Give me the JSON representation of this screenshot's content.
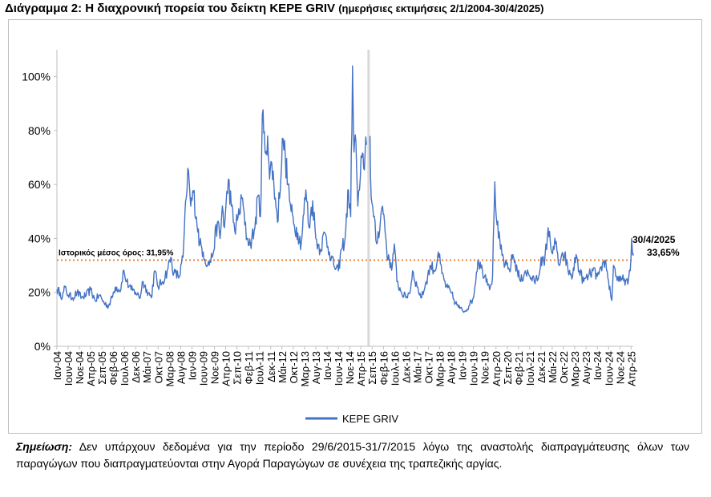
{
  "title": {
    "main": "Διάγραμμα 2: Η διαχρονική πορεία του δείκτη ΚΕΡΕ GRIV",
    "sub": "(ημερήσιες εκτιμήσεις 2/1/2004-30/4/2025)"
  },
  "note": {
    "label": "Σημείωση:",
    "text": "Δεν υπάρχουν δεδομένα για την περίοδο 29/6/2015-31/7/2015 λόγω της αναστολής διαπραγμάτευσης όλων των παραγώγων που διαπραγματεύονται στην Αγορά Παραγώγων σε συνέχεια της τραπεζικής αργίας."
  },
  "colors": {
    "series": "#4472c4",
    "mean_line": "#ed7d31",
    "gap_band": "#d9d9d9",
    "axis": "#bfbfbf"
  },
  "chart_data": {
    "type": "line",
    "ylim": [
      0,
      110
    ],
    "yticks": [
      0,
      20,
      40,
      60,
      80,
      100
    ],
    "ytick_labels": [
      "0%",
      "20%",
      "40%",
      "60%",
      "80%",
      "100%"
    ],
    "xlim": [
      "2004-01-02",
      "2025-04-30"
    ],
    "x_ticks": [
      {
        "date": "2004-01-01",
        "label": "Ιαν-04"
      },
      {
        "date": "2004-06-01",
        "label": "Ιουν-04"
      },
      {
        "date": "2004-11-01",
        "label": "Νοε-04"
      },
      {
        "date": "2005-04-01",
        "label": "Απρ-05"
      },
      {
        "date": "2005-09-01",
        "label": "Σεπ-05"
      },
      {
        "date": "2006-02-01",
        "label": "Φεβ-06"
      },
      {
        "date": "2006-07-01",
        "label": "Ιουλ-06"
      },
      {
        "date": "2006-12-01",
        "label": "Δεκ-06"
      },
      {
        "date": "2007-05-01",
        "label": "Μάι-07"
      },
      {
        "date": "2007-10-01",
        "label": "Οκτ-07"
      },
      {
        "date": "2008-03-01",
        "label": "Μαρ-08"
      },
      {
        "date": "2008-08-01",
        "label": "Αυγ-08"
      },
      {
        "date": "2009-01-01",
        "label": "Ιαν-09"
      },
      {
        "date": "2009-06-01",
        "label": "Ιουν-09"
      },
      {
        "date": "2009-11-01",
        "label": "Νοε-09"
      },
      {
        "date": "2010-04-01",
        "label": "Απρ-10"
      },
      {
        "date": "2010-09-01",
        "label": "Σεπ-10"
      },
      {
        "date": "2011-02-01",
        "label": "Φεβ-11"
      },
      {
        "date": "2011-07-01",
        "label": "Ιουλ-11"
      },
      {
        "date": "2011-12-01",
        "label": "Δεκ-11"
      },
      {
        "date": "2012-05-01",
        "label": "Μάι-12"
      },
      {
        "date": "2012-10-01",
        "label": "Οκτ-12"
      },
      {
        "date": "2013-03-01",
        "label": "Μαρ-13"
      },
      {
        "date": "2013-08-01",
        "label": "Αυγ-13"
      },
      {
        "date": "2014-01-01",
        "label": "Ιαν-14"
      },
      {
        "date": "2014-06-01",
        "label": "Ιουν-14"
      },
      {
        "date": "2014-11-01",
        "label": "Νοε-14"
      },
      {
        "date": "2015-04-01",
        "label": "Απρ-15"
      },
      {
        "date": "2015-09-01",
        "label": "Σεπ-15"
      },
      {
        "date": "2016-02-01",
        "label": "Φεβ-16"
      },
      {
        "date": "2016-07-01",
        "label": "Ιουλ-16"
      },
      {
        "date": "2016-12-01",
        "label": "Δεκ-16"
      },
      {
        "date": "2017-05-01",
        "label": "Μάι-17"
      },
      {
        "date": "2017-10-01",
        "label": "Οκτ-17"
      },
      {
        "date": "2018-03-01",
        "label": "Μαρ-18"
      },
      {
        "date": "2018-08-01",
        "label": "Αυγ-18"
      },
      {
        "date": "2019-01-01",
        "label": "Ιαν-19"
      },
      {
        "date": "2019-06-01",
        "label": "Ιουν-19"
      },
      {
        "date": "2019-11-01",
        "label": "Νοε-19"
      },
      {
        "date": "2020-04-01",
        "label": "Απρ-20"
      },
      {
        "date": "2020-09-01",
        "label": "Σεπ-20"
      },
      {
        "date": "2021-02-01",
        "label": "Φεβ-21"
      },
      {
        "date": "2021-07-01",
        "label": "Ιουλ-21"
      },
      {
        "date": "2021-12-01",
        "label": "Δεκ-21"
      },
      {
        "date": "2022-05-01",
        "label": "Μάι-22"
      },
      {
        "date": "2022-10-01",
        "label": "Οκτ-22"
      },
      {
        "date": "2023-03-01",
        "label": "Μαρ-23"
      },
      {
        "date": "2023-08-01",
        "label": "Αυγ-23"
      },
      {
        "date": "2024-01-01",
        "label": "Ιαν-24"
      },
      {
        "date": "2024-06-01",
        "label": "Ιουν-24"
      },
      {
        "date": "2024-11-01",
        "label": "Νοε-24"
      },
      {
        "date": "2025-04-01",
        "label": "Απρ-25"
      }
    ],
    "series": [
      {
        "name": "ΚΕΡΕ GRIV",
        "points": [
          [
            "2004-01-02",
            21
          ],
          [
            "2004-02-15",
            20
          ],
          [
            "2004-03-15",
            18
          ],
          [
            "2004-04-20",
            22
          ],
          [
            "2004-06-01",
            19
          ],
          [
            "2004-08-01",
            18
          ],
          [
            "2004-10-01",
            20
          ],
          [
            "2004-12-01",
            18
          ],
          [
            "2005-02-01",
            19
          ],
          [
            "2005-04-01",
            21
          ],
          [
            "2005-06-01",
            17
          ],
          [
            "2005-08-01",
            19
          ],
          [
            "2005-10-01",
            16
          ],
          [
            "2005-12-01",
            15
          ],
          [
            "2006-01-15",
            18
          ],
          [
            "2006-03-01",
            22
          ],
          [
            "2006-05-15",
            21
          ],
          [
            "2006-06-15",
            28
          ],
          [
            "2006-08-01",
            24
          ],
          [
            "2006-10-01",
            21
          ],
          [
            "2006-12-01",
            20
          ],
          [
            "2007-02-01",
            18
          ],
          [
            "2007-03-01",
            24
          ],
          [
            "2007-05-01",
            21
          ],
          [
            "2007-07-01",
            18
          ],
          [
            "2007-08-15",
            28
          ],
          [
            "2007-10-01",
            22
          ],
          [
            "2007-12-01",
            24
          ],
          [
            "2008-02-01",
            28
          ],
          [
            "2008-03-20",
            33
          ],
          [
            "2008-05-01",
            27
          ],
          [
            "2008-07-15",
            26
          ],
          [
            "2008-09-01",
            33
          ],
          [
            "2008-10-15",
            55
          ],
          [
            "2008-11-05",
            66
          ],
          [
            "2008-12-15",
            52
          ],
          [
            "2009-01-20",
            57
          ],
          [
            "2009-03-01",
            48
          ],
          [
            "2009-04-15",
            38
          ],
          [
            "2009-06-01",
            35
          ],
          [
            "2009-08-01",
            30
          ],
          [
            "2009-10-01",
            33
          ],
          [
            "2009-12-10",
            46
          ],
          [
            "2010-01-15",
            40
          ],
          [
            "2010-02-15",
            52
          ],
          [
            "2010-03-15",
            44
          ],
          [
            "2010-05-07",
            62
          ],
          [
            "2010-06-15",
            52
          ],
          [
            "2010-08-01",
            43
          ],
          [
            "2010-09-15",
            48
          ],
          [
            "2010-11-15",
            55
          ],
          [
            "2010-12-15",
            45
          ],
          [
            "2011-01-15",
            40
          ],
          [
            "2011-03-01",
            38
          ],
          [
            "2011-05-01",
            44
          ],
          [
            "2011-06-15",
            56
          ],
          [
            "2011-07-15",
            48
          ],
          [
            "2011-08-10",
            86
          ],
          [
            "2011-09-15",
            72
          ],
          [
            "2011-10-20",
            78
          ],
          [
            "2011-11-15",
            62
          ],
          [
            "2011-12-15",
            68
          ],
          [
            "2012-02-01",
            55
          ],
          [
            "2012-03-01",
            46
          ],
          [
            "2012-05-15",
            77
          ],
          [
            "2012-06-15",
            70
          ],
          [
            "2012-07-20",
            60
          ],
          [
            "2012-09-01",
            50
          ],
          [
            "2012-10-15",
            45
          ],
          [
            "2012-12-01",
            42
          ],
          [
            "2013-01-15",
            38
          ],
          [
            "2013-03-20",
            58
          ],
          [
            "2013-05-01",
            44
          ],
          [
            "2013-06-20",
            54
          ],
          [
            "2013-08-01",
            40
          ],
          [
            "2013-10-01",
            36
          ],
          [
            "2013-12-01",
            42
          ],
          [
            "2014-02-01",
            35
          ],
          [
            "2014-04-01",
            30
          ],
          [
            "2014-06-01",
            28
          ],
          [
            "2014-07-15",
            36
          ],
          [
            "2014-09-01",
            40
          ],
          [
            "2014-10-16",
            58
          ],
          [
            "2014-11-15",
            48
          ],
          [
            "2014-12-10",
            104
          ],
          [
            "2014-12-30",
            72
          ],
          [
            "2015-01-25",
            76
          ],
          [
            "2015-02-20",
            52
          ],
          [
            "2015-03-15",
            58
          ],
          [
            "2015-04-15",
            70
          ],
          [
            "2015-05-10",
            66
          ],
          [
            "2015-06-26",
            82
          ],
          [
            "2015-08-03",
            78
          ],
          [
            "2015-08-20",
            55
          ],
          [
            "2015-09-20",
            48
          ],
          [
            "2015-11-01",
            38
          ],
          [
            "2016-01-20",
            52
          ],
          [
            "2016-02-15",
            46
          ],
          [
            "2016-04-01",
            32
          ],
          [
            "2016-06-01",
            30
          ],
          [
            "2016-06-27",
            38
          ],
          [
            "2016-08-01",
            24
          ],
          [
            "2016-10-01",
            20
          ],
          [
            "2016-12-01",
            18
          ],
          [
            "2017-02-01",
            21
          ],
          [
            "2017-03-01",
            28
          ],
          [
            "2017-05-01",
            22
          ],
          [
            "2017-07-01",
            18
          ],
          [
            "2017-09-01",
            24
          ],
          [
            "2017-11-01",
            30
          ],
          [
            "2018-01-01",
            28
          ],
          [
            "2018-02-10",
            35
          ],
          [
            "2018-04-01",
            27
          ],
          [
            "2018-06-01",
            22
          ],
          [
            "2018-08-01",
            20
          ],
          [
            "2018-10-01",
            16
          ],
          [
            "2018-12-01",
            14
          ],
          [
            "2019-02-01",
            13
          ],
          [
            "2019-04-01",
            15
          ],
          [
            "2019-06-01",
            18
          ],
          [
            "2019-08-01",
            32
          ],
          [
            "2019-10-01",
            28
          ],
          [
            "2019-12-01",
            25
          ],
          [
            "2020-01-15",
            22
          ],
          [
            "2020-02-15",
            26
          ],
          [
            "2020-03-16",
            61
          ],
          [
            "2020-04-15",
            45
          ],
          [
            "2020-06-01",
            36
          ],
          [
            "2020-08-01",
            30
          ],
          [
            "2020-10-01",
            28
          ],
          [
            "2020-11-15",
            34
          ],
          [
            "2021-01-15",
            28
          ],
          [
            "2021-03-01",
            24
          ],
          [
            "2021-05-01",
            28
          ],
          [
            "2021-07-01",
            26
          ],
          [
            "2021-09-01",
            24
          ],
          [
            "2021-11-01",
            26
          ],
          [
            "2021-12-01",
            33
          ],
          [
            "2022-01-15",
            30
          ],
          [
            "2022-03-07",
            44
          ],
          [
            "2022-04-15",
            36
          ],
          [
            "2022-06-15",
            38
          ],
          [
            "2022-08-01",
            30
          ],
          [
            "2022-10-15",
            34
          ],
          [
            "2022-12-01",
            28
          ],
          [
            "2023-02-01",
            26
          ],
          [
            "2023-03-20",
            34
          ],
          [
            "2023-05-01",
            28
          ],
          [
            "2023-07-01",
            24
          ],
          [
            "2023-09-01",
            26
          ],
          [
            "2023-11-01",
            28
          ],
          [
            "2024-01-01",
            26
          ],
          [
            "2024-03-01",
            28
          ],
          [
            "2024-04-15",
            32
          ],
          [
            "2024-06-01",
            24
          ],
          [
            "2024-07-15",
            17
          ],
          [
            "2024-08-05",
            30
          ],
          [
            "2024-09-15",
            26
          ],
          [
            "2024-11-01",
            24
          ],
          [
            "2025-01-01",
            25
          ],
          [
            "2025-02-15",
            23
          ],
          [
            "2025-03-20",
            28
          ],
          [
            "2025-04-08",
            40
          ],
          [
            "2025-04-20",
            34
          ],
          [
            "2025-04-30",
            33.65
          ]
        ]
      }
    ],
    "gap_period": [
      "2015-06-29",
      "2015-07-31"
    ],
    "mean_line": {
      "value": 31.95,
      "label": "Ιστορικός μέσος όρος: 31,95%"
    },
    "end_annotation": {
      "date": "2025-04-30",
      "value": 33.65,
      "line1": "30/4/2025",
      "line2": "33,65%"
    },
    "legend": {
      "position": "bottom",
      "label": "ΚΕΡΕ GRIV"
    }
  }
}
